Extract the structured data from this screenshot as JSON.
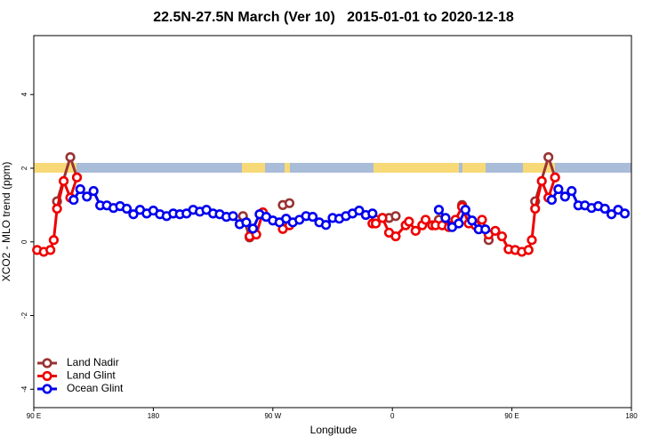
{
  "chart_data": {
    "type": "line",
    "title": "22.5N-27.5N March (Ver 10)   2015-01-01 to 2020-12-18",
    "x_label": "Longitude",
    "y_label": "XCO2 - MLO trend (ppm)",
    "xlim": [
      90,
      540
    ],
    "ylim": [
      -4.5,
      5.6
    ],
    "xticks": [
      {
        "value": 90,
        "label": "90 E"
      },
      180,
      {
        "value": 270,
        "label": "90 W"
      },
      {
        "value": 360,
        "label": "0"
      },
      {
        "value": 450,
        "label": "90 E"
      },
      {
        "value": 540,
        "label": "180"
      }
    ],
    "yticks": [
      -4,
      -2,
      0,
      2,
      4
    ],
    "legend": "bottom-left",
    "series": [
      {
        "name": "Land Nadir",
        "color": "#993333",
        "x": [
          107.5,
          117.5,
          122.5,
          185,
          247.5,
          252.5,
          265,
          277.5,
          282.5,
          315,
          347.5,
          352.5,
          357.5,
          362.5,
          380,
          395,
          405,
          412.5,
          420,
          432.5,
          450,
          467.5,
          477.5,
          482.5
        ],
        "values": [
          1.1,
          2.3,
          1.75,
          null,
          0.7,
          0.12,
          null,
          1.0,
          1.05,
          null,
          0.6,
          0.65,
          0.65,
          0.7,
          null,
          0.6,
          null,
          1.0,
          null,
          0.05,
          null,
          1.1,
          2.3,
          1.75
        ]
      },
      {
        "name": "Land Glint",
        "color": "#ee0000",
        "x": [
          92.5,
          97.5,
          102.5,
          105,
          107.5,
          112.5,
          117.5,
          122.5,
          185,
          252.5,
          257.5,
          262.5,
          270,
          277.5,
          282.5,
          315,
          345,
          347.5,
          352.5,
          357.5,
          362.5,
          370,
          372.5,
          377.5,
          382.5,
          385,
          390,
          392.5,
          397.5,
          402.5,
          405,
          407.5,
          412.5,
          417.5,
          422.5,
          427.5,
          432.5,
          437.5,
          442.5,
          447.5,
          452.5,
          457.5,
          462.5,
          465,
          467.5,
          472.5,
          477.5,
          482.5
        ],
        "values": [
          -0.22,
          -0.27,
          -0.22,
          0.05,
          0.9,
          1.65,
          1.2,
          1.75,
          null,
          0.15,
          0.2,
          0.8,
          null,
          0.35,
          0.45,
          null,
          0.5,
          0.5,
          0.65,
          0.25,
          0.15,
          0.45,
          0.55,
          0.3,
          0.45,
          0.6,
          0.45,
          0.45,
          0.45,
          0.4,
          0.45,
          0.6,
          0.95,
          0.5,
          0.45,
          0.6,
          0.2,
          0.3,
          0.15,
          -0.2,
          -0.22,
          -0.27,
          -0.22,
          0.05,
          0.9,
          1.65,
          1.2,
          1.75
        ]
      },
      {
        "name": "Ocean Glint",
        "color": "#0000ee",
        "x": [
          120,
          125,
          130,
          135,
          140,
          145,
          150,
          155,
          160,
          165,
          170,
          175,
          180,
          185,
          190,
          195,
          200,
          205,
          210,
          215,
          220,
          225,
          230,
          235,
          240,
          245,
          250,
          255,
          260,
          265,
          270,
          275,
          280,
          285,
          290,
          295,
          300,
          305,
          310,
          315,
          320,
          325,
          330,
          335,
          340,
          345,
          370,
          395,
          400,
          405,
          410,
          415,
          420,
          425,
          430,
          455,
          480,
          485,
          490,
          495,
          500,
          505,
          510,
          515,
          520,
          525,
          530,
          535
        ],
        "values": [
          1.14,
          1.43,
          1.23,
          1.38,
          0.99,
          0.99,
          0.92,
          0.97,
          0.9,
          0.75,
          0.87,
          0.77,
          0.85,
          0.75,
          0.7,
          0.77,
          0.75,
          0.77,
          0.87,
          0.82,
          0.87,
          0.77,
          0.75,
          0.68,
          0.7,
          0.48,
          0.53,
          0.36,
          0.75,
          0.68,
          0.58,
          0.53,
          0.63,
          0.53,
          0.6,
          0.7,
          0.68,
          0.53,
          0.46,
          0.65,
          0.63,
          0.7,
          0.77,
          0.85,
          0.73,
          0.77,
          null,
          0.87,
          0.65,
          0.4,
          0.5,
          0.87,
          0.58,
          0.34,
          0.34,
          null,
          1.14,
          1.43,
          1.23,
          1.38,
          0.99,
          0.99,
          0.92,
          0.97,
          0.9,
          0.75,
          0.87,
          0.77
        ]
      }
    ]
  }
}
